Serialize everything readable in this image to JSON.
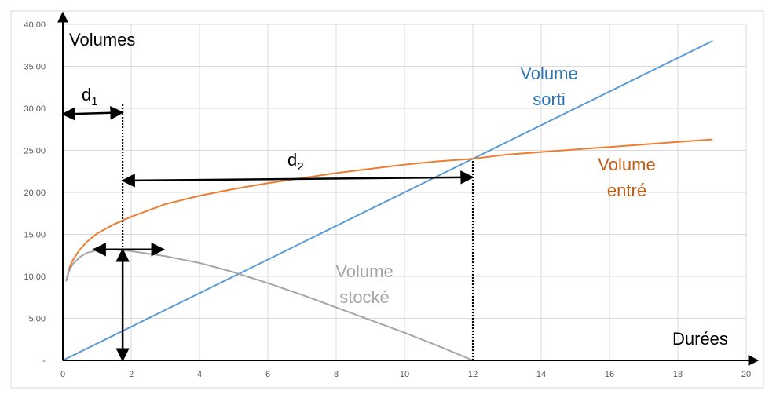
{
  "chart_data": {
    "type": "line",
    "x_axis": {
      "title": "Durées",
      "range": [
        0,
        20
      ],
      "ticks": [
        0,
        2,
        4,
        6,
        8,
        10,
        12,
        14,
        16,
        18,
        20
      ],
      "tick_labels": [
        "0",
        "2",
        "4",
        "6",
        "8",
        "10",
        "12",
        "14",
        "16",
        "18",
        "20"
      ]
    },
    "y_axis": {
      "title": "Volumes",
      "range": [
        0,
        40
      ],
      "ticks": [
        0,
        5,
        10,
        15,
        20,
        25,
        30,
        35,
        40
      ],
      "tick_labels": [
        "-",
        "5,00",
        "10,00",
        "15,00",
        "20,00",
        "25,00",
        "30,00",
        "35,00",
        "40,00"
      ]
    },
    "grid": true,
    "series": [
      {
        "name": "Volume sorti",
        "label_lines": [
          "Volume",
          "sorti"
        ],
        "color": "#5b9bd5",
        "points": [
          [
            0,
            0
          ],
          [
            19,
            38
          ]
        ]
      },
      {
        "name": "Volume entré",
        "label_lines": [
          "Volume",
          "entré"
        ],
        "color": "#ed7d31",
        "points": [
          [
            0.1,
            9.5
          ],
          [
            0.15,
            10.3
          ],
          [
            0.2,
            11.1
          ],
          [
            0.3,
            12.0
          ],
          [
            0.5,
            13.2
          ],
          [
            0.7,
            14.1
          ],
          [
            1,
            15.1
          ],
          [
            1.5,
            16.2
          ],
          [
            2,
            17.1
          ],
          [
            3,
            18.6
          ],
          [
            4,
            19.6
          ],
          [
            5,
            20.4
          ],
          [
            6,
            21.1
          ],
          [
            7,
            21.7
          ],
          [
            8,
            22.3
          ],
          [
            9,
            22.8
          ],
          [
            10,
            23.3
          ],
          [
            11,
            23.7
          ],
          [
            12,
            24.0
          ],
          [
            13,
            24.5
          ],
          [
            14,
            24.8
          ],
          [
            15,
            25.1
          ],
          [
            16,
            25.4
          ],
          [
            17,
            25.7
          ],
          [
            18,
            26.0
          ],
          [
            19,
            26.3
          ]
        ]
      },
      {
        "name": "Volume stocké",
        "label_lines": [
          "Volume",
          "stocké"
        ],
        "color": "#a5a5a5",
        "points": [
          [
            0.1,
            9.5
          ],
          [
            0.15,
            10.2
          ],
          [
            0.2,
            10.8
          ],
          [
            0.3,
            11.5
          ],
          [
            0.5,
            12.3
          ],
          [
            0.7,
            12.8
          ],
          [
            1,
            13.1
          ],
          [
            1.5,
            13.2
          ],
          [
            2,
            13.0
          ],
          [
            3,
            12.4
          ],
          [
            4,
            11.6
          ],
          [
            5,
            10.5
          ],
          [
            6,
            9.2
          ],
          [
            7,
            7.8
          ],
          [
            8,
            6.3
          ],
          [
            9,
            4.8
          ],
          [
            10,
            3.3
          ],
          [
            11,
            1.7
          ],
          [
            12,
            0.0
          ]
        ]
      }
    ],
    "annotations": [
      {
        "name": "d1",
        "text": "d",
        "subscript": "1",
        "from": [
          0,
          29.3
        ],
        "to": [
          1.75,
          29.5
        ],
        "type": "double-arrow"
      },
      {
        "name": "d2",
        "text": "d",
        "subscript": "2",
        "from": [
          1.75,
          21.4
        ],
        "to": [
          12,
          21.8
        ],
        "type": "double-arrow"
      },
      {
        "name": "stock-max-horizontal",
        "text": "",
        "from": [
          0.9,
          13.2
        ],
        "to": [
          2.95,
          13.2
        ],
        "type": "double-arrow"
      },
      {
        "name": "stock-max-vertical",
        "text": "",
        "from": [
          1.75,
          0
        ],
        "to": [
          1.75,
          13.2
        ],
        "type": "double-arrow"
      },
      {
        "name": "d1-guide",
        "text": "",
        "from": [
          1.75,
          0
        ],
        "to": [
          1.75,
          30.5
        ],
        "type": "dotted-line"
      },
      {
        "name": "d2-guide",
        "text": "",
        "from": [
          12,
          0
        ],
        "to": [
          12,
          24.0
        ],
        "type": "dotted-line"
      }
    ]
  }
}
